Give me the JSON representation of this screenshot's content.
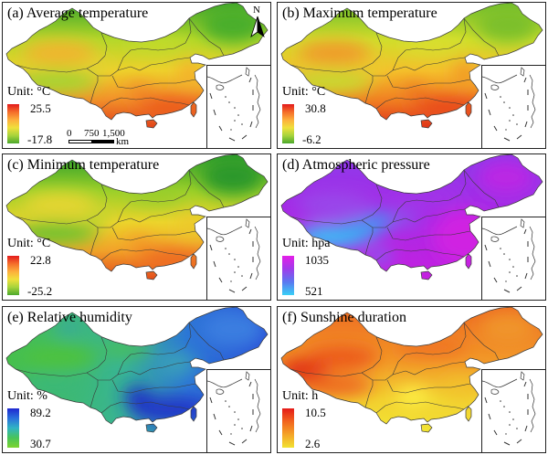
{
  "panels": [
    {
      "label": "(a) Average temperature",
      "unit": "Unit: °C",
      "max": "25.5",
      "min": "-17.8",
      "colorbar": [
        "#e31a1c",
        "#f46d2a",
        "#fdae3c",
        "#f0e03c",
        "#a6d43c",
        "#4ca82c"
      ]
    },
    {
      "label": "(b) Maximum temperature",
      "unit": "Unit: °C",
      "max": "30.8",
      "min": "-6.2",
      "colorbar": [
        "#e31a1c",
        "#f46d2a",
        "#fdae3c",
        "#f0e03c",
        "#a6d43c",
        "#4ca82c"
      ]
    },
    {
      "label": "(c) Minimum temperature",
      "unit": "Unit: °C",
      "max": "22.8",
      "min": "-25.2",
      "colorbar": [
        "#e31a1c",
        "#f46d2a",
        "#fdae3c",
        "#f0e03c",
        "#a6d43c",
        "#4ca82c"
      ]
    },
    {
      "label": "(d) Atmospheric pressure",
      "unit": "Unit: hpa",
      "max": "1035",
      "min": "521",
      "colorbar": [
        "#e41ee8",
        "#a03cea",
        "#5a78f0",
        "#38d0f6"
      ]
    },
    {
      "label": "(e) Relative humidity",
      "unit": "Unit: %",
      "max": "89.2",
      "min": "30.7",
      "colorbar": [
        "#1e28d0",
        "#2a70dc",
        "#30b4c4",
        "#48c458",
        "#7cd430"
      ]
    },
    {
      "label": "(f) Sunshine duration",
      "unit": "Unit: h",
      "max": "10.5",
      "min": "2.6",
      "colorbar": [
        "#e41a18",
        "#f2641e",
        "#f4a428",
        "#f2e232"
      ]
    }
  ],
  "scale_bar": {
    "ticks": [
      "0",
      "750",
      "1,500"
    ],
    "unit": "km"
  },
  "north_arrow": {
    "label": "N",
    "icon": "north-arrow-icon"
  }
}
